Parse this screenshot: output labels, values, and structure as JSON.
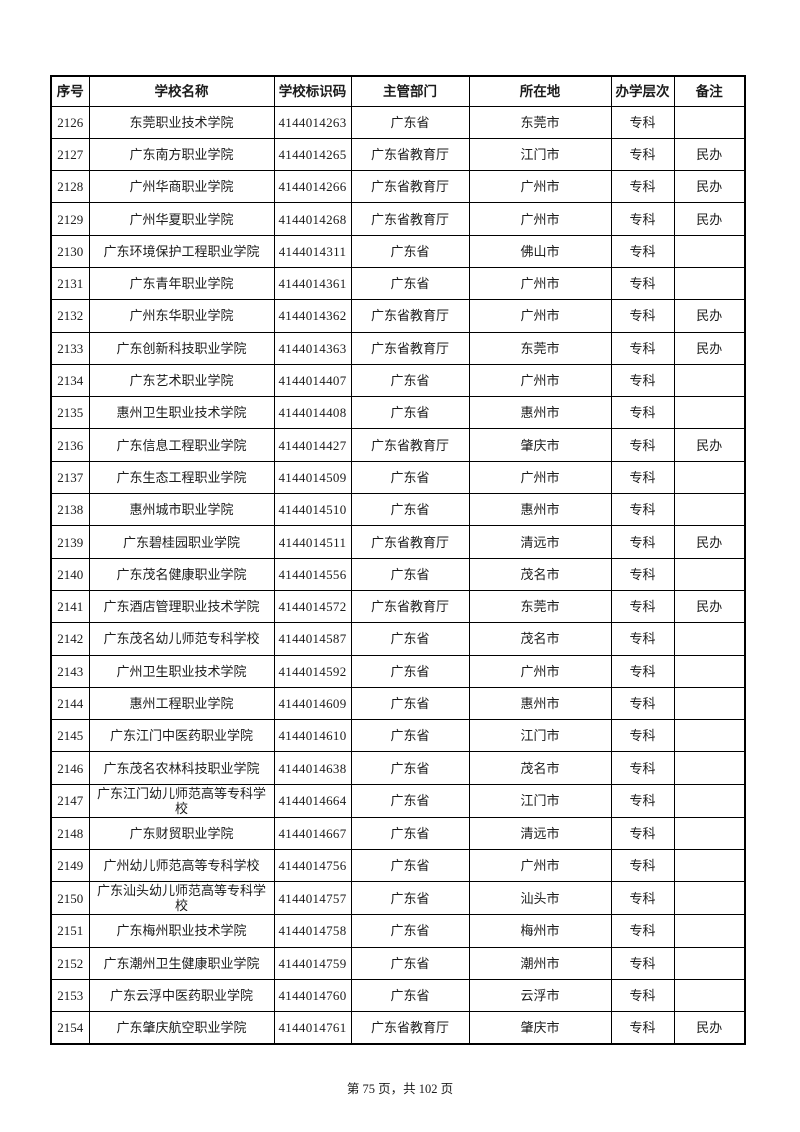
{
  "table": {
    "columns": [
      "序号",
      "学校名称",
      "学校标识码",
      "主管部门",
      "所在地",
      "办学层次",
      "备注"
    ],
    "column_keys": [
      "index",
      "school-name",
      "school-id",
      "authority",
      "location",
      "level",
      "remark"
    ],
    "rows": [
      [
        "2126",
        "东莞职业技术学院",
        "4144014263",
        "广东省",
        "东莞市",
        "专科",
        ""
      ],
      [
        "2127",
        "广东南方职业学院",
        "4144014265",
        "广东省教育厅",
        "江门市",
        "专科",
        "民办"
      ],
      [
        "2128",
        "广州华商职业学院",
        "4144014266",
        "广东省教育厅",
        "广州市",
        "专科",
        "民办"
      ],
      [
        "2129",
        "广州华夏职业学院",
        "4144014268",
        "广东省教育厅",
        "广州市",
        "专科",
        "民办"
      ],
      [
        "2130",
        "广东环境保护工程职业学院",
        "4144014311",
        "广东省",
        "佛山市",
        "专科",
        ""
      ],
      [
        "2131",
        "广东青年职业学院",
        "4144014361",
        "广东省",
        "广州市",
        "专科",
        ""
      ],
      [
        "2132",
        "广州东华职业学院",
        "4144014362",
        "广东省教育厅",
        "广州市",
        "专科",
        "民办"
      ],
      [
        "2133",
        "广东创新科技职业学院",
        "4144014363",
        "广东省教育厅",
        "东莞市",
        "专科",
        "民办"
      ],
      [
        "2134",
        "广东艺术职业学院",
        "4144014407",
        "广东省",
        "广州市",
        "专科",
        ""
      ],
      [
        "2135",
        "惠州卫生职业技术学院",
        "4144014408",
        "广东省",
        "惠州市",
        "专科",
        ""
      ],
      [
        "2136",
        "广东信息工程职业学院",
        "4144014427",
        "广东省教育厅",
        "肇庆市",
        "专科",
        "民办"
      ],
      [
        "2137",
        "广东生态工程职业学院",
        "4144014509",
        "广东省",
        "广州市",
        "专科",
        ""
      ],
      [
        "2138",
        "惠州城市职业学院",
        "4144014510",
        "广东省",
        "惠州市",
        "专科",
        ""
      ],
      [
        "2139",
        "广东碧桂园职业学院",
        "4144014511",
        "广东省教育厅",
        "清远市",
        "专科",
        "民办"
      ],
      [
        "2140",
        "广东茂名健康职业学院",
        "4144014556",
        "广东省",
        "茂名市",
        "专科",
        ""
      ],
      [
        "2141",
        "广东酒店管理职业技术学院",
        "4144014572",
        "广东省教育厅",
        "东莞市",
        "专科",
        "民办"
      ],
      [
        "2142",
        "广东茂名幼儿师范专科学校",
        "4144014587",
        "广东省",
        "茂名市",
        "专科",
        ""
      ],
      [
        "2143",
        "广州卫生职业技术学院",
        "4144014592",
        "广东省",
        "广州市",
        "专科",
        ""
      ],
      [
        "2144",
        "惠州工程职业学院",
        "4144014609",
        "广东省",
        "惠州市",
        "专科",
        ""
      ],
      [
        "2145",
        "广东江门中医药职业学院",
        "4144014610",
        "广东省",
        "江门市",
        "专科",
        ""
      ],
      [
        "2146",
        "广东茂名农林科技职业学院",
        "4144014638",
        "广东省",
        "茂名市",
        "专科",
        ""
      ],
      [
        "2147",
        "广东江门幼儿师范高等专科学校",
        "4144014664",
        "广东省",
        "江门市",
        "专科",
        ""
      ],
      [
        "2148",
        "广东财贸职业学院",
        "4144014667",
        "广东省",
        "清远市",
        "专科",
        ""
      ],
      [
        "2149",
        "广州幼儿师范高等专科学校",
        "4144014756",
        "广东省",
        "广州市",
        "专科",
        ""
      ],
      [
        "2150",
        "广东汕头幼儿师范高等专科学校",
        "4144014757",
        "广东省",
        "汕头市",
        "专科",
        ""
      ],
      [
        "2151",
        "广东梅州职业技术学院",
        "4144014758",
        "广东省",
        "梅州市",
        "专科",
        ""
      ],
      [
        "2152",
        "广东潮州卫生健康职业学院",
        "4144014759",
        "广东省",
        "潮州市",
        "专科",
        ""
      ],
      [
        "2153",
        "广东云浮中医药职业学院",
        "4144014760",
        "广东省",
        "云浮市",
        "专科",
        ""
      ],
      [
        "2154",
        "广东肇庆航空职业学院",
        "4144014761",
        "广东省教育厅",
        "肇庆市",
        "专科",
        "民办"
      ]
    ]
  },
  "footer": {
    "text": "第 75 页，共 102 页"
  }
}
